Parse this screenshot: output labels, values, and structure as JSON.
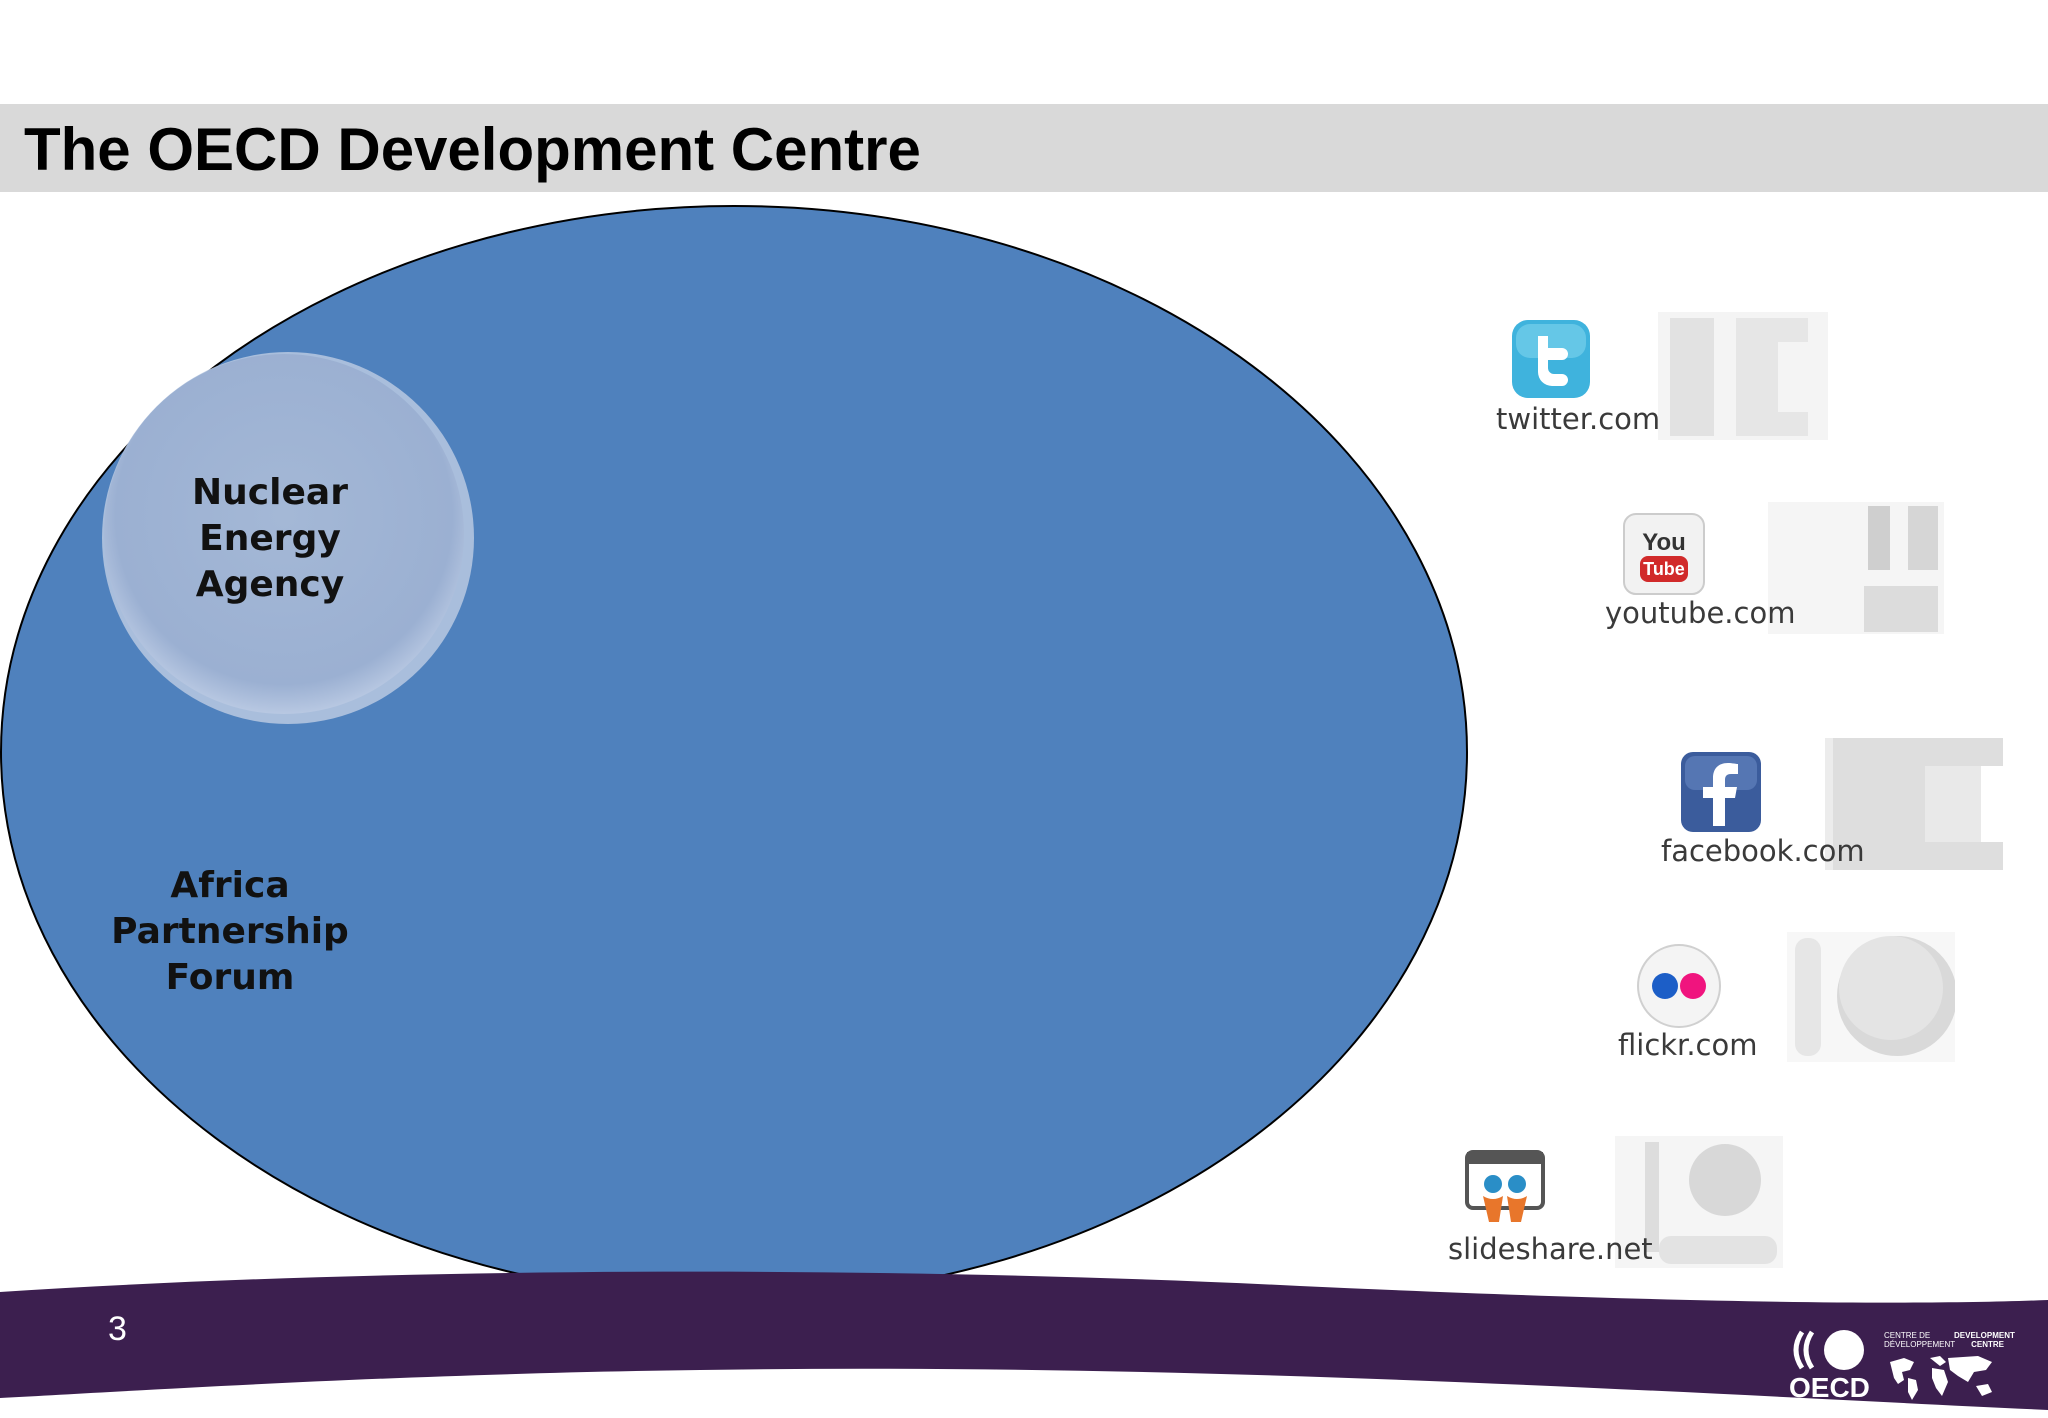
{
  "slide": {
    "title": "The OECD Development Centre",
    "page_number": "3"
  },
  "diagram": {
    "outer_ellipse_color": "#4f81bd",
    "outer_ellipse_stroke": "#000000",
    "inner_circle_color": "#9fb4d4",
    "circles": [
      {
        "label_lines": [
          "Nuclear",
          "Energy",
          "Agency"
        ]
      },
      {
        "label_lines": [
          "Africa",
          "Partnership",
          "Forum"
        ]
      }
    ]
  },
  "social_links": [
    {
      "name": "twitter",
      "label": "twitter.com",
      "icon": "twitter-bird-icon"
    },
    {
      "name": "youtube",
      "label": "youtube.com",
      "icon": "youtube-icon"
    },
    {
      "name": "facebook",
      "label": "facebook.com",
      "icon": "facebook-f-icon"
    },
    {
      "name": "flickr",
      "label": "flickr.com",
      "icon": "flickr-dots-icon"
    },
    {
      "name": "slideshare",
      "label": "slideshare.net",
      "icon": "slideshare-icon"
    }
  ],
  "footer": {
    "band_color": "#3c1f4f",
    "logo": {
      "wordmark": "OECD",
      "centre_text_fr": "CENTRE DE DÉVELOPPEMENT",
      "centre_text_en": "DEVELOPMENT CENTRE"
    }
  }
}
